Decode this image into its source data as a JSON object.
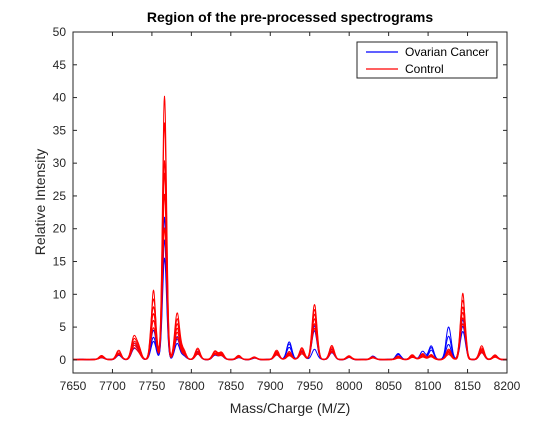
{
  "chart_data": {
    "type": "line",
    "title": "Region of the pre-processed spectrograms",
    "xlabel": "Mass/Charge (M/Z)",
    "ylabel": "Relative Intensity",
    "xlim": [
      7650,
      8200
    ],
    "ylim": [
      -2,
      50
    ],
    "xticks": [
      7650,
      7700,
      7750,
      7800,
      7850,
      7900,
      7950,
      8000,
      8050,
      8100,
      8150,
      8200
    ],
    "yticks": [
      0,
      5,
      10,
      15,
      20,
      25,
      30,
      35,
      40,
      45,
      50
    ],
    "grid": false,
    "legend_position": "top-right",
    "legend": [
      {
        "label": "Ovarian Cancer",
        "color": "#0000ff"
      },
      {
        "label": "Control",
        "color": "#ff0000"
      }
    ],
    "series": [
      {
        "group": "Ovarian Cancer",
        "color": "#0000ff",
        "peaks": [
          [
            7686,
            0.4
          ],
          [
            7708,
            0.7
          ],
          [
            7727,
            1.5
          ],
          [
            7733,
            0.9
          ],
          [
            7752,
            3.4
          ],
          [
            7766,
            18.2
          ],
          [
            7782,
            2.4
          ],
          [
            7790,
            0.6
          ],
          [
            7808,
            0.9
          ],
          [
            7830,
            0.7
          ],
          [
            7838,
            0.6
          ],
          [
            7860,
            0.3
          ],
          [
            7880,
            0.2
          ],
          [
            7908,
            0.8
          ],
          [
            7924,
            2.4
          ],
          [
            7940,
            1.1
          ],
          [
            7956,
            4.4
          ],
          [
            7978,
            1.2
          ],
          [
            8000,
            0.3
          ],
          [
            8030,
            0.3
          ],
          [
            8062,
            0.6
          ],
          [
            8080,
            0.5
          ],
          [
            8093,
            0.6
          ],
          [
            8104,
            1.4
          ],
          [
            8126,
            2.3
          ],
          [
            8144,
            5.1
          ],
          [
            8168,
            1.1
          ],
          [
            8185,
            0.5
          ]
        ]
      },
      {
        "group": "Ovarian Cancer",
        "color": "#0000ff",
        "peaks": [
          [
            7686,
            0.3
          ],
          [
            7708,
            0.9
          ],
          [
            7727,
            1.9
          ],
          [
            7733,
            1.1
          ],
          [
            7752,
            4.5
          ],
          [
            7766,
            21.7
          ],
          [
            7782,
            3.1
          ],
          [
            7790,
            0.8
          ],
          [
            7808,
            1.2
          ],
          [
            7830,
            0.9
          ],
          [
            7838,
            0.8
          ],
          [
            7860,
            0.4
          ],
          [
            7880,
            0.3
          ],
          [
            7908,
            1.0
          ],
          [
            7924,
            1.9
          ],
          [
            7940,
            1.3
          ],
          [
            7956,
            5.2
          ],
          [
            7978,
            1.6
          ],
          [
            8000,
            0.4
          ],
          [
            8030,
            0.4
          ],
          [
            8062,
            0.8
          ],
          [
            8080,
            0.6
          ],
          [
            8093,
            0.9
          ],
          [
            8104,
            1.8
          ],
          [
            8126,
            3.6
          ],
          [
            8144,
            6.1
          ],
          [
            8168,
            1.4
          ],
          [
            8185,
            0.6
          ]
        ]
      },
      {
        "group": "Ovarian Cancer",
        "color": "#0000ff",
        "peaks": [
          [
            7686,
            0.5
          ],
          [
            7708,
            0.6
          ],
          [
            7727,
            2.2
          ],
          [
            7733,
            1.3
          ],
          [
            7752,
            2.8
          ],
          [
            7766,
            15.5
          ],
          [
            7782,
            3.5
          ],
          [
            7790,
            0.7
          ],
          [
            7808,
            0.8
          ],
          [
            7830,
            0.6
          ],
          [
            7838,
            0.7
          ],
          [
            7860,
            0.3
          ],
          [
            7880,
            0.3
          ],
          [
            7908,
            0.7
          ],
          [
            7924,
            2.7
          ],
          [
            7940,
            0.9
          ],
          [
            7956,
            1.6
          ],
          [
            7978,
            1.0
          ],
          [
            8000,
            0.3
          ],
          [
            8030,
            0.5
          ],
          [
            8062,
            0.9
          ],
          [
            8080,
            0.4
          ],
          [
            8093,
            1.3
          ],
          [
            8104,
            2.1
          ],
          [
            8126,
            5.0
          ],
          [
            8144,
            4.3
          ],
          [
            8168,
            1.0
          ],
          [
            8185,
            0.4
          ]
        ]
      },
      {
        "group": "Control",
        "color": "#ff0000",
        "peaks": [
          [
            7686,
            0.6
          ],
          [
            7708,
            1.4
          ],
          [
            7727,
            3.3
          ],
          [
            7733,
            1.9
          ],
          [
            7752,
            10.6
          ],
          [
            7766,
            40.2
          ],
          [
            7782,
            7.1
          ],
          [
            7790,
            1.4
          ],
          [
            7808,
            1.7
          ],
          [
            7830,
            1.3
          ],
          [
            7838,
            1.1
          ],
          [
            7860,
            0.6
          ],
          [
            7880,
            0.4
          ],
          [
            7908,
            1.4
          ],
          [
            7924,
            1.2
          ],
          [
            7940,
            1.8
          ],
          [
            7956,
            8.4
          ],
          [
            7978,
            2.1
          ],
          [
            8000,
            0.6
          ],
          [
            8030,
            0.4
          ],
          [
            8062,
            0.5
          ],
          [
            8080,
            0.7
          ],
          [
            8093,
            0.9
          ],
          [
            8104,
            0.8
          ],
          [
            8126,
            1.6
          ],
          [
            8144,
            10.1
          ],
          [
            8168,
            2.1
          ],
          [
            8185,
            0.7
          ]
        ]
      },
      {
        "group": "Control",
        "color": "#ff0000",
        "peaks": [
          [
            7686,
            0.5
          ],
          [
            7708,
            1.2
          ],
          [
            7727,
            2.9
          ],
          [
            7733,
            1.7
          ],
          [
            7752,
            9.2
          ],
          [
            7766,
            36.1
          ],
          [
            7782,
            6.2
          ],
          [
            7790,
            1.2
          ],
          [
            7808,
            1.5
          ],
          [
            7830,
            1.2
          ],
          [
            7838,
            1.0
          ],
          [
            7860,
            0.5
          ],
          [
            7880,
            0.4
          ],
          [
            7908,
            1.2
          ],
          [
            7924,
            1.0
          ],
          [
            7940,
            1.6
          ],
          [
            7956,
            7.6
          ],
          [
            7978,
            1.9
          ],
          [
            8000,
            0.5
          ],
          [
            8030,
            0.4
          ],
          [
            8062,
            0.4
          ],
          [
            8080,
            0.6
          ],
          [
            8093,
            0.8
          ],
          [
            8104,
            0.7
          ],
          [
            8126,
            1.4
          ],
          [
            8144,
            9.0
          ],
          [
            8168,
            1.8
          ],
          [
            8185,
            0.6
          ]
        ]
      },
      {
        "group": "Control",
        "color": "#ff0000",
        "peaks": [
          [
            7686,
            0.5
          ],
          [
            7708,
            1.0
          ],
          [
            7727,
            2.5
          ],
          [
            7733,
            1.5
          ],
          [
            7752,
            8.0
          ],
          [
            7766,
            30.3
          ],
          [
            7782,
            5.4
          ],
          [
            7790,
            1.1
          ],
          [
            7808,
            1.3
          ],
          [
            7830,
            1.0
          ],
          [
            7838,
            0.9
          ],
          [
            7860,
            0.5
          ],
          [
            7880,
            0.3
          ],
          [
            7908,
            1.1
          ],
          [
            7924,
            0.9
          ],
          [
            7940,
            1.4
          ],
          [
            7956,
            6.9
          ],
          [
            7978,
            1.7
          ],
          [
            8000,
            0.5
          ],
          [
            8030,
            0.3
          ],
          [
            8062,
            0.4
          ],
          [
            8080,
            0.5
          ],
          [
            8093,
            0.7
          ],
          [
            8104,
            0.6
          ],
          [
            8126,
            1.2
          ],
          [
            8144,
            8.0
          ],
          [
            8168,
            1.6
          ],
          [
            8185,
            0.5
          ]
        ]
      },
      {
        "group": "Control",
        "color": "#ff0000",
        "peaks": [
          [
            7686,
            0.4
          ],
          [
            7708,
            0.9
          ],
          [
            7727,
            2.2
          ],
          [
            7733,
            1.3
          ],
          [
            7752,
            7.0
          ],
          [
            7766,
            28.4
          ],
          [
            7782,
            4.7
          ],
          [
            7790,
            1.0
          ],
          [
            7808,
            1.1
          ],
          [
            7830,
            0.9
          ],
          [
            7838,
            0.8
          ],
          [
            7860,
            0.4
          ],
          [
            7880,
            0.3
          ],
          [
            7908,
            1.0
          ],
          [
            7924,
            0.8
          ],
          [
            7940,
            1.2
          ],
          [
            7956,
            6.2
          ],
          [
            7978,
            1.5
          ],
          [
            8000,
            0.4
          ],
          [
            8030,
            0.3
          ],
          [
            8062,
            0.3
          ],
          [
            8080,
            0.5
          ],
          [
            8093,
            0.6
          ],
          [
            8104,
            0.5
          ],
          [
            8126,
            1.1
          ],
          [
            8144,
            7.2
          ],
          [
            8168,
            1.4
          ],
          [
            8185,
            0.5
          ]
        ]
      },
      {
        "group": "Control",
        "color": "#ff0000",
        "peaks": [
          [
            7686,
            0.4
          ],
          [
            7708,
            0.8
          ],
          [
            7727,
            1.9
          ],
          [
            7733,
            1.1
          ],
          [
            7752,
            6.0
          ],
          [
            7766,
            25.2
          ],
          [
            7782,
            4.1
          ],
          [
            7790,
            0.9
          ],
          [
            7808,
            1.0
          ],
          [
            7830,
            0.8
          ],
          [
            7838,
            0.7
          ],
          [
            7860,
            0.4
          ],
          [
            7880,
            0.3
          ],
          [
            7908,
            0.9
          ],
          [
            7924,
            0.7
          ],
          [
            7940,
            1.1
          ],
          [
            7956,
            5.5
          ],
          [
            7978,
            1.3
          ],
          [
            8000,
            0.4
          ],
          [
            8030,
            0.3
          ],
          [
            8062,
            0.3
          ],
          [
            8080,
            0.4
          ],
          [
            8093,
            0.5
          ],
          [
            8104,
            0.5
          ],
          [
            8126,
            1.0
          ],
          [
            8144,
            6.4
          ],
          [
            8168,
            1.2
          ],
          [
            8185,
            0.4
          ]
        ]
      },
      {
        "group": "Control",
        "color": "#ff0000",
        "peaks": [
          [
            7686,
            0.3
          ],
          [
            7708,
            0.7
          ],
          [
            7727,
            1.6
          ],
          [
            7733,
            0.9
          ],
          [
            7752,
            4.9
          ],
          [
            7766,
            20.1
          ],
          [
            7782,
            3.4
          ],
          [
            7790,
            0.7
          ],
          [
            7808,
            0.8
          ],
          [
            7830,
            0.7
          ],
          [
            7838,
            0.6
          ],
          [
            7860,
            0.3
          ],
          [
            7880,
            0.2
          ],
          [
            7908,
            0.7
          ],
          [
            7924,
            0.6
          ],
          [
            7940,
            0.9
          ],
          [
            7956,
            4.8
          ],
          [
            7978,
            1.1
          ],
          [
            8000,
            0.3
          ],
          [
            8030,
            0.2
          ],
          [
            8062,
            0.2
          ],
          [
            8080,
            0.3
          ],
          [
            8093,
            0.4
          ],
          [
            8104,
            0.4
          ],
          [
            8126,
            0.8
          ],
          [
            8144,
            5.5
          ],
          [
            8168,
            1.0
          ],
          [
            8185,
            0.3
          ]
        ]
      }
    ]
  }
}
